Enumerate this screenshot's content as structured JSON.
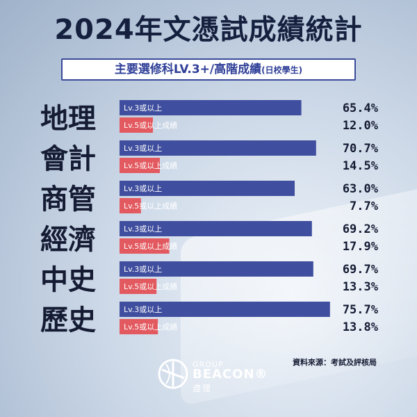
{
  "title": "2024年文憑試成績統計",
  "subtitle": {
    "main": "主要選修科LV.3+/高階成績",
    "note": "(日校學生)"
  },
  "colors": {
    "lv3_bar": "#3f4e9e",
    "lv5_bar": "#e2595f",
    "lv5_label_bg": "#f26a6f"
  },
  "chart_data": {
    "type": "bar",
    "orientation": "horizontal",
    "categories": [
      "地理",
      "會計",
      "商管",
      "經濟",
      "中史",
      "歷史"
    ],
    "series": [
      {
        "name": "Lv.3或以上",
        "values": [
          65.4,
          70.7,
          63.0,
          69.2,
          69.7,
          75.7
        ]
      },
      {
        "name": "Lv.5或以上成績",
        "values": [
          12.0,
          14.5,
          7.7,
          17.9,
          13.3,
          13.8
        ]
      }
    ],
    "value_labels": [
      [
        "65.4%",
        "70.7%",
        "63.0%",
        "69.2%",
        "69.7%",
        "75.7%"
      ],
      [
        "12.0%",
        "14.5%",
        "7.7%",
        "17.9%",
        "13.3%",
        "13.8%"
      ]
    ],
    "unit": "%",
    "grid": false
  },
  "footer": {
    "source": "資料來源：考試及評核局",
    "logo_group": "GROUP",
    "logo_name": "BEACON®",
    "logo_sub": "遵理",
    "logo_icon": "beacon-logo-icon"
  }
}
